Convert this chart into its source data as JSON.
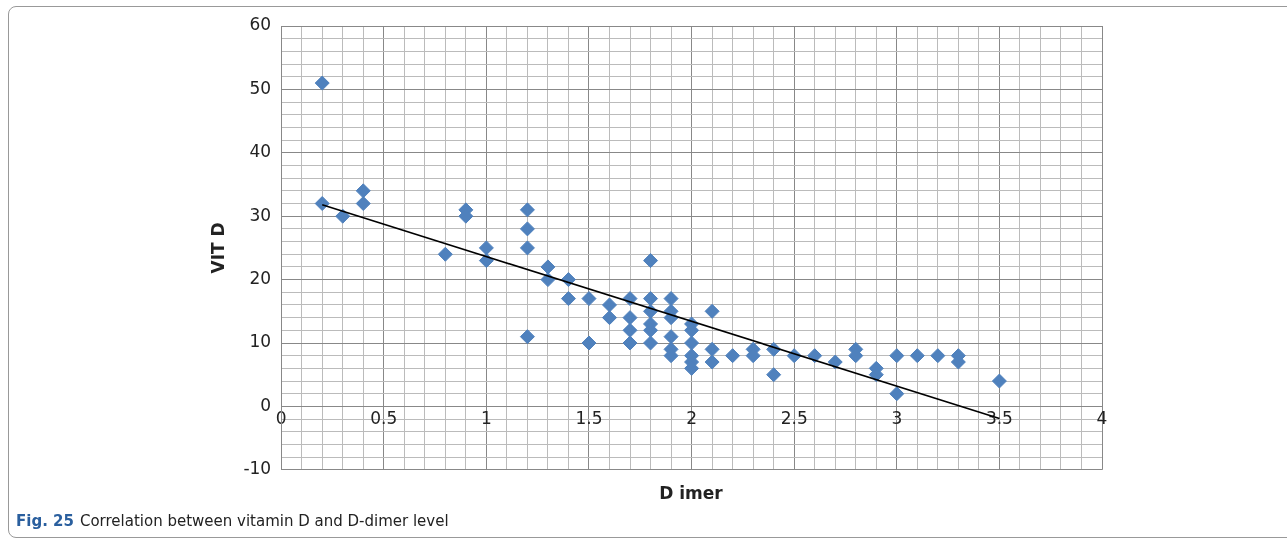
{
  "chart_data": {
    "type": "scatter",
    "xlabel": "D imer",
    "ylabel": "VIT D",
    "annotations": [
      "Fig. 25",
      "Correlation between vitamin D and D-dimer level"
    ],
    "xlim": [
      0,
      4
    ],
    "ylim": [
      -10,
      60
    ],
    "xticks": [
      0,
      {
        "value": 0.1,
        "label": null
      },
      {
        "value": 0.2,
        "label": null
      },
      {
        "value": 0.3,
        "label": null
      },
      {
        "value": 0.4,
        "label": null
      },
      0.5,
      {
        "value": 0.6,
        "label": null
      },
      {
        "value": 0.7,
        "label": null
      },
      {
        "value": 0.8,
        "label": null
      },
      {
        "value": 0.9,
        "label": null
      },
      1,
      {
        "value": 1.1,
        "label": null
      },
      {
        "value": 1.2,
        "label": null
      },
      {
        "value": 1.3,
        "label": null
      },
      {
        "value": 1.4,
        "label": null
      },
      1.5,
      {
        "value": 1.6,
        "label": null
      },
      {
        "value": 1.7,
        "label": null
      },
      {
        "value": 1.8,
        "label": null
      },
      {
        "value": 1.9,
        "label": null
      },
      2,
      {
        "value": 2.1,
        "label": null
      },
      {
        "value": 2.2,
        "label": null
      },
      {
        "value": 2.3,
        "label": null
      },
      {
        "value": 2.4,
        "label": null
      },
      2.5,
      {
        "value": 2.6,
        "label": null
      },
      {
        "value": 2.7,
        "label": null
      },
      {
        "value": 2.8,
        "label": null
      },
      {
        "value": 2.9,
        "label": null
      },
      3,
      {
        "value": 3.1,
        "label": null
      },
      {
        "value": 3.2,
        "label": null
      },
      {
        "value": 3.3,
        "label": null
      },
      {
        "value": 3.4,
        "label": null
      },
      3.5,
      {
        "value": 3.6,
        "label": null
      },
      {
        "value": 3.7,
        "label": null
      },
      {
        "value": 3.8,
        "label": null
      },
      {
        "value": 3.9,
        "label": null
      },
      4
    ],
    "yticks": [
      -10,
      {
        "value": -8,
        "label": null
      },
      {
        "value": -6,
        "label": null
      },
      {
        "value": -4,
        "label": null
      },
      {
        "value": -2,
        "label": null
      },
      0,
      {
        "value": 2,
        "label": null
      },
      {
        "value": 4,
        "label": null
      },
      {
        "value": 6,
        "label": null
      },
      {
        "value": 8,
        "label": null
      },
      10,
      {
        "value": 12,
        "label": null
      },
      {
        "value": 14,
        "label": null
      },
      {
        "value": 16,
        "label": null
      },
      {
        "value": 18,
        "label": null
      },
      20,
      {
        "value": 22,
        "label": null
      },
      {
        "value": 24,
        "label": null
      },
      {
        "value": 26,
        "label": null
      },
      {
        "value": 28,
        "label": null
      },
      30,
      {
        "value": 32,
        "label": null
      },
      {
        "value": 34,
        "label": null
      },
      {
        "value": 36,
        "label": null
      },
      {
        "value": 38,
        "label": null
      },
      40,
      {
        "value": 42,
        "label": null
      },
      {
        "value": 44,
        "label": null
      },
      {
        "value": 46,
        "label": null
      },
      {
        "value": 48,
        "label": null
      },
      50,
      {
        "value": 52,
        "label": null
      },
      {
        "value": 54,
        "label": null
      },
      {
        "value": 56,
        "label": null
      },
      {
        "value": 58,
        "label": null
      },
      60
    ],
    "grid": true,
    "legend": false,
    "series": [
      {
        "color": "#4f81bd",
        "marker": "diamond",
        "x": [
          0.2,
          0.2,
          0.3,
          0.4,
          0.4,
          0.8,
          0.9,
          0.9,
          1,
          1,
          1.2,
          1.2,
          1.2,
          1.2,
          1.3,
          1.3,
          1.4,
          1.4,
          1.5,
          1.5,
          1.6,
          1.6,
          1.7,
          1.7,
          1.7,
          1.7,
          1.8,
          1.8,
          1.8,
          1.8,
          1.8,
          1.8,
          1.9,
          1.9,
          1.9,
          1.9,
          1.9,
          1.9,
          2,
          2,
          2,
          2,
          2,
          2,
          2.1,
          2.1,
          2.1,
          2.2,
          2.3,
          2.3,
          2.4,
          2.4,
          2.5,
          2.6,
          2.7,
          2.8,
          2.8,
          2.9,
          2.9,
          3,
          3,
          3.1,
          3.2,
          3.3,
          3.3,
          3.5
        ],
        "values": [
          51,
          32,
          30,
          34,
          32,
          24,
          31,
          30,
          25,
          23,
          31,
          28,
          25,
          11,
          22,
          20,
          20,
          17,
          17,
          10,
          16,
          14,
          17,
          14,
          12,
          10,
          23,
          17,
          15,
          13,
          12,
          10,
          17,
          15,
          14,
          11,
          9,
          8,
          13,
          12,
          10,
          8,
          7,
          6,
          15,
          9,
          7,
          8,
          9,
          8,
          9,
          5,
          8,
          8,
          7,
          9,
          8,
          6,
          5,
          8,
          2,
          8,
          8,
          8,
          7,
          4
        ]
      },
      {
        "type": "line",
        "color": "#000000",
        "marker": "none",
        "x": [
          0.2,
          3.5
        ],
        "values": [
          31.8,
          -1.9
        ]
      }
    ]
  }
}
